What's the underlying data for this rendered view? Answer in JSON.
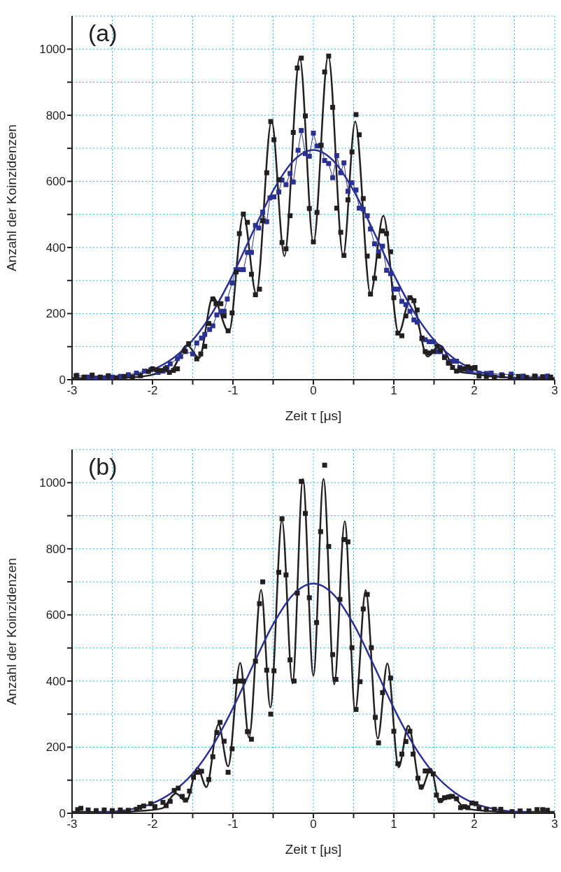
{
  "chart_data": [
    {
      "type": "scatter",
      "annotations": [
        "(a)"
      ],
      "xlabel": "Zeit τ [μs]",
      "ylabel": "Anzahl der Koinzidenzen",
      "xlim": [
        -3,
        3
      ],
      "ylim": [
        0,
        1100
      ],
      "xticks": [
        -3,
        {
          "value": -2.5,
          "label": null
        },
        -2,
        {
          "value": -1.5,
          "label": null
        },
        -1,
        {
          "value": -0.5,
          "label": null
        },
        0,
        {
          "value": 0.5,
          "label": null
        },
        1,
        {
          "value": 1.5,
          "label": null
        },
        2,
        {
          "value": 2.5,
          "label": null
        },
        3
      ],
      "yticks": [
        0,
        {
          "value": 100,
          "label": null
        },
        200,
        {
          "value": 300,
          "label": null
        },
        400,
        {
          "value": 500,
          "label": null
        },
        600,
        {
          "value": 700,
          "label": null
        },
        800,
        {
          "value": 900,
          "label": null
        },
        1000
      ],
      "grid": true,
      "series": [
        {
          "type": "line",
          "color": "#2b3192",
          "marker": "square",
          "x": [
            -2.94,
            -2.8,
            -2.7,
            -2.6,
            -2.5,
            -2.4,
            -2.3,
            -2.2,
            -2.1,
            -2.02,
            -1.93,
            -1.87,
            -1.82,
            -1.78,
            -1.69,
            -1.65,
            -1.59,
            -1.5,
            -1.45,
            -1.39,
            -1.35,
            -1.29,
            -1.25,
            -1.2,
            -1.15,
            -1.11,
            -1.07,
            -1.01,
            -0.96,
            -0.92,
            -0.87,
            -0.82,
            -0.77,
            -0.72,
            -0.68,
            -0.63,
            -0.58,
            -0.54,
            -0.49,
            -0.43,
            -0.39,
            -0.34,
            -0.29,
            -0.25,
            -0.19,
            -0.15,
            -0.1,
            -0.05,
            0,
            0.045,
            0.095,
            0.14,
            0.19,
            0.24,
            0.29,
            0.34,
            0.38,
            0.43,
            0.48,
            0.53,
            0.57,
            0.62,
            0.67,
            0.71,
            0.76,
            0.81,
            0.86,
            0.91,
            0.96,
            1.0,
            1.05,
            1.1,
            1.15,
            1.2,
            1.25,
            1.29,
            1.35,
            1.39,
            1.44,
            1.49,
            1.54,
            1.58,
            1.63,
            1.68,
            1.73,
            1.78,
            1.82,
            1.87,
            1.92,
            1.96,
            2.06,
            2.15,
            2.21,
            2.34,
            2.46,
            2.61,
            2.76,
            2.91
          ],
          "values": [
            13,
            8,
            5,
            6,
            8,
            10,
            15,
            20,
            26,
            30,
            22,
            26,
            37,
            48,
            64,
            70,
            85,
            78,
            111,
            126,
            137,
            152,
            163,
            196,
            207,
            207,
            244,
            293,
            333,
            333,
            333,
            385,
            385,
            467,
            459,
            507,
            478,
            550,
            553,
            568,
            604,
            590,
            624,
            598,
            694,
            754,
            684,
            676,
            746,
            707,
            709,
            663,
            654,
            611,
            678,
            626,
            656,
            570,
            596,
            574,
            519,
            516,
            496,
            456,
            411,
            387,
            404,
            331,
            321,
            274,
            274,
            237,
            227,
            207,
            181,
            174,
            124,
            121,
            115,
            115,
            85,
            85,
            70,
            54,
            56,
            56,
            37,
            33,
            30,
            26,
            19,
            19,
            20,
            15,
            17,
            11,
            10,
            11
          ]
        },
        {
          "color": "#231f20",
          "marker": "square",
          "x": [
            -2.95,
            -2.85,
            -2.75,
            -2.65,
            -2.55,
            -2.45,
            -2.35,
            -2.25,
            -2.15,
            -2.05,
            -2.0,
            -1.95,
            -1.9,
            -1.84,
            -1.79,
            -1.74,
            -1.69,
            -1.6,
            -1.55,
            -1.45,
            -1.4,
            -1.35,
            -1.3,
            -1.25,
            -1.21,
            -1.15,
            -1.11,
            -1.06,
            -1.01,
            -0.96,
            -0.92,
            -0.87,
            -0.82,
            -0.77,
            -0.72,
            -0.67,
            -0.63,
            -0.58,
            -0.53,
            -0.49,
            -0.43,
            -0.39,
            -0.34,
            -0.29,
            -0.25,
            -0.2,
            -0.15,
            -0.1,
            -0.05,
            0,
            0.045,
            0.095,
            0.14,
            0.19,
            0.24,
            0.29,
            0.34,
            0.38,
            0.43,
            0.48,
            0.53,
            0.57,
            0.62,
            0.67,
            0.71,
            0.76,
            0.81,
            0.86,
            0.91,
            0.96,
            1.0,
            1.05,
            1.1,
            1.15,
            1.2,
            1.25,
            1.29,
            1.35,
            1.39,
            1.44,
            1.49,
            1.54,
            1.58,
            1.63,
            1.68,
            1.73,
            1.78,
            1.82,
            1.87,
            1.92,
            1.96,
            2.01,
            2.06,
            2.15,
            2.25,
            2.35,
            2.45,
            2.55,
            2.65,
            2.75,
            2.85,
            2.95
          ],
          "values": [
            12,
            8,
            14,
            8,
            12,
            6,
            10,
            8,
            12,
            25,
            33,
            30,
            28,
            33,
            22,
            28,
            33,
            87,
            109,
            63,
            78,
            101,
            170,
            244,
            230,
            230,
            193,
            148,
            202,
            326,
            442,
            501,
            476,
            319,
            257,
            274,
            481,
            626,
            781,
            726,
            605,
            415,
            396,
            496,
            748,
            943,
            973,
            798,
            518,
            417,
            506,
            709,
            931,
            979,
            824,
            519,
            446,
            376,
            544,
            689,
            802,
            741,
            548,
            374,
            259,
            307,
            374,
            450,
            442,
            387,
            248,
            141,
            133,
            193,
            248,
            239,
            211,
            126,
            85,
            81,
            85,
            101,
            89,
            67,
            50,
            37,
            26,
            33,
            33,
            39,
            35,
            37,
            11,
            10,
            8,
            12,
            8,
            10,
            7,
            11,
            9,
            8
          ]
        },
        {
          "type": "line",
          "color": "#231f20",
          "x": [
            -3,
            -2.5,
            -2.2,
            -2,
            -1.88,
            -1.78,
            -1.57,
            -1.42,
            -1.25,
            -1.05,
            -0.87,
            -0.71,
            -0.52,
            -0.36,
            -0.17,
            0,
            0.185,
            0.37,
            0.52,
            0.71,
            0.87,
            1.06,
            1.21,
            1.42,
            1.57,
            1.78,
            2,
            2.2,
            2.5,
            3
          ],
          "values": [
            5,
            5,
            8,
            15,
            25,
            26,
            104,
            66,
            250,
            145,
            500,
            260,
            783,
            374,
            975,
            413,
            981,
            374,
            781,
            259,
            496,
            141,
            252,
            70,
            104,
            26,
            18,
            10,
            6,
            5
          ]
        },
        {
          "type": "line",
          "color": "#2b3192",
          "x": [
            -3,
            -2.75,
            -2.5,
            -2.25,
            -2,
            -1.75,
            -1.5,
            -1.25,
            -1,
            -0.75,
            -0.5,
            -0.25,
            0,
            0.25,
            0.5,
            0.75,
            1,
            1.25,
            1.5,
            1.75,
            2,
            2.25,
            2.5,
            2.75,
            3
          ],
          "values": [
            1,
            2,
            5,
            13,
            30,
            64,
            120,
            205,
            318,
            448,
            572,
            662,
            695,
            662,
            572,
            448,
            318,
            205,
            120,
            64,
            30,
            13,
            5,
            2,
            1
          ]
        }
      ]
    },
    {
      "type": "scatter",
      "annotations": [
        "(b)"
      ],
      "xlabel": "Zeit τ [μs]",
      "ylabel": "Anzahl der Koinzidenzen",
      "xlim": [
        -3,
        3
      ],
      "ylim": [
        0,
        1100
      ],
      "xticks": [
        -3,
        {
          "value": -2.5,
          "label": null
        },
        -2,
        {
          "value": -1.5,
          "label": null
        },
        -1,
        {
          "value": -0.5,
          "label": null
        },
        0,
        {
          "value": 0.5,
          "label": null
        },
        1,
        {
          "value": 1.5,
          "label": null
        },
        2,
        {
          "value": 2.5,
          "label": null
        },
        3
      ],
      "yticks": [
        0,
        {
          "value": 100,
          "label": null
        },
        200,
        {
          "value": 300,
          "label": null
        },
        400,
        {
          "value": 500,
          "label": null
        },
        600,
        {
          "value": 700,
          "label": null
        },
        800,
        {
          "value": 900,
          "label": null
        },
        1000
      ],
      "grid": true,
      "series": [
        {
          "color": "#231f20",
          "marker": "square",
          "x": [
            -2.93,
            -2.89,
            -2.8,
            -2.7,
            -2.6,
            -2.5,
            -2.4,
            -2.3,
            -2.2,
            -2.16,
            -2.11,
            -2.02,
            -1.97,
            -1.87,
            -1.83,
            -1.78,
            -1.73,
            -1.68,
            -1.63,
            -1.59,
            -1.54,
            -1.49,
            -1.44,
            -1.39,
            -1.3,
            -1.25,
            -1.2,
            -1.16,
            -1.11,
            -1.06,
            -1.01,
            -0.97,
            -0.92,
            -0.87,
            -0.82,
            -0.77,
            -0.72,
            -0.67,
            -0.63,
            -0.58,
            -0.53,
            -0.49,
            -0.43,
            -0.39,
            -0.34,
            -0.29,
            -0.24,
            -0.2,
            -0.15,
            -0.1,
            -0.05,
            0.04,
            0.09,
            0.14,
            0.19,
            0.24,
            0.28,
            0.33,
            0.38,
            0.43,
            0.48,
            0.53,
            0.58,
            0.62,
            0.67,
            0.72,
            0.77,
            0.81,
            0.86,
            0.96,
            1.0,
            1.05,
            1.1,
            1.15,
            1.2,
            1.24,
            1.3,
            1.34,
            1.39,
            1.44,
            1.49,
            1.53,
            1.58,
            1.63,
            1.68,
            1.73,
            1.78,
            1.83,
            1.88,
            1.92,
            1.97,
            2.02,
            2.06,
            2.15,
            2.25,
            2.33,
            2.47,
            2.57,
            2.68,
            2.78,
            2.85,
            2.91
          ],
          "values": [
            11,
            15,
            10,
            8,
            10,
            8,
            10,
            9,
            12,
            18,
            22,
            29,
            20,
            33,
            23,
            36,
            69,
            76,
            51,
            40,
            67,
            109,
            124,
            127,
            102,
            171,
            244,
            275,
            218,
            124,
            195,
            399,
            400,
            400,
            247,
            224,
            460,
            634,
            700,
            433,
            300,
            431,
            729,
            891,
            721,
            464,
            400,
            666,
            1004,
            907,
            652,
            577,
            852,
            1053,
            807,
            480,
            405,
            647,
            828,
            821,
            501,
            314,
            398,
            618,
            662,
            501,
            290,
            213,
            365,
            409,
            248,
            150,
            179,
            217,
            248,
            179,
            106,
            80,
            128,
            128,
            119,
            55,
            39,
            47,
            49,
            51,
            44,
            17,
            20,
            17,
            31,
            29,
            15,
            11,
            12,
            12,
            5,
            7,
            7,
            11,
            11,
            9
          ]
        },
        {
          "type": "line",
          "color": "#231f20",
          "x": [
            -3,
            -2.5,
            -2.1,
            -1.88,
            -1.71,
            -1.58,
            -1.44,
            -1.33,
            -1.18,
            -1.06,
            -0.91,
            -0.8,
            -0.65,
            -0.535,
            -0.39,
            -0.26,
            -0.13,
            0,
            0.126,
            0.26,
            0.39,
            0.52,
            0.65,
            0.8,
            0.92,
            1.06,
            1.18,
            1.34,
            1.46,
            1.57,
            1.7,
            1.89,
            2.1,
            2.5,
            3
          ],
          "values": [
            4,
            4,
            8,
            15,
            60,
            36,
            138,
            79,
            269,
            142,
            455,
            229,
            676,
            320,
            887,
            393,
            1011,
            416,
            1011,
            390,
            883,
            310,
            675,
            226,
            453,
            139,
            265,
            73,
            135,
            33,
            56,
            15,
            8,
            4,
            4
          ]
        },
        {
          "type": "line",
          "color": "#2b3192",
          "x": [
            -3,
            -2.75,
            -2.5,
            -2.25,
            -2,
            -1.75,
            -1.5,
            -1.25,
            -1,
            -0.75,
            -0.5,
            -0.25,
            0,
            0.25,
            0.5,
            0.75,
            1,
            1.25,
            1.5,
            1.75,
            2,
            2.25,
            2.5,
            2.75,
            3
          ],
          "values": [
            1,
            2,
            5,
            13,
            30,
            64,
            120,
            205,
            318,
            448,
            572,
            662,
            695,
            662,
            572,
            448,
            318,
            205,
            120,
            64,
            30,
            13,
            5,
            2,
            1
          ]
        }
      ]
    }
  ]
}
